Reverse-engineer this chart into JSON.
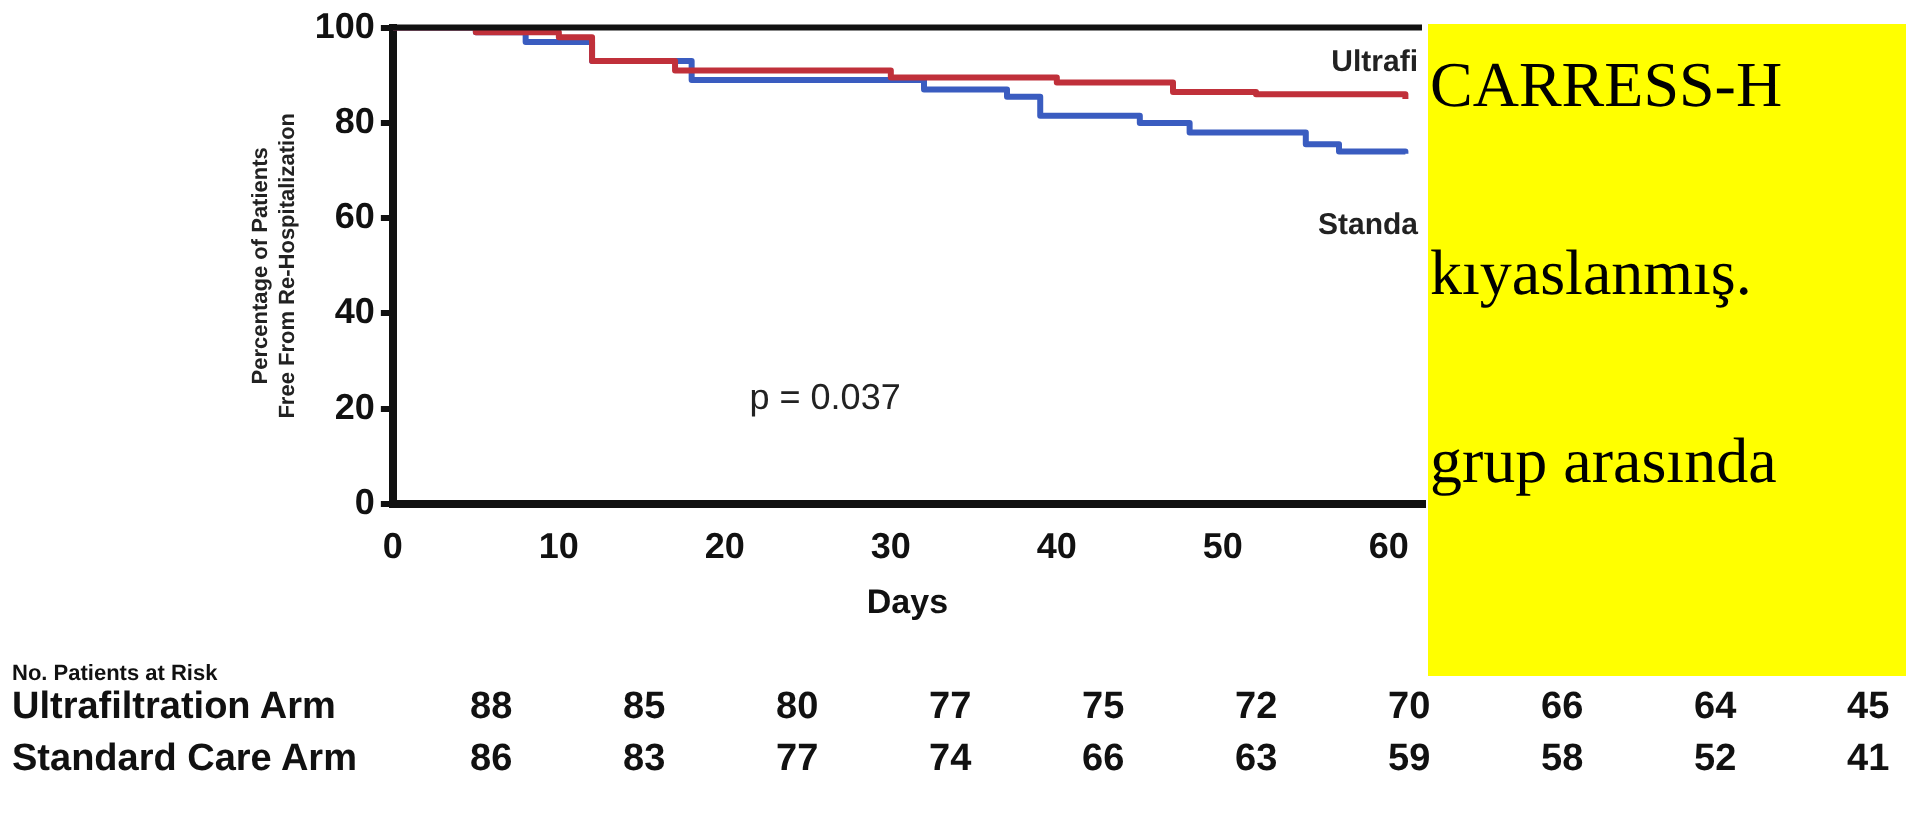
{
  "chart_data": {
    "type": "step",
    "ylabel": "Percentage of Patients\nFree From Re-Hospitalization",
    "xlabel": "Days",
    "xlim": [
      0,
      62
    ],
    "xticks": [
      0,
      10,
      20,
      30,
      40,
      50,
      60
    ],
    "ylim": [
      0,
      100
    ],
    "yticks": [
      0,
      20,
      40,
      60,
      80,
      100
    ],
    "series": [
      {
        "name": "Ultrafi",
        "color": "#c0303a",
        "x": [
          0,
          5,
          10,
          12,
          17,
          30,
          40,
          47,
          52,
          61
        ],
        "values": [
          100,
          99,
          98,
          93,
          91,
          89.5,
          88.5,
          86.5,
          86,
          85
        ]
      },
      {
        "name": "Standa",
        "color": "#3a5cc0",
        "x": [
          0,
          5,
          8,
          12,
          18,
          25,
          32,
          37,
          39,
          45,
          48,
          55,
          57,
          61
        ],
        "values": [
          100,
          99,
          97,
          93,
          89,
          89,
          87,
          85.5,
          81.5,
          80,
          78,
          75.5,
          74,
          73.5
        ]
      }
    ],
    "annotations": [
      "p = 0.037",
      "No. Patients at Risk",
      "Ultrafiltration Arm 88 85 80 77 75 72 70 66 64 45",
      "Standard Care Arm 86 83 77 74 66 63 59 58 52 41",
      "CARRESS-H",
      "kıyaslanmış.",
      "grup arasında"
    ]
  }
}
